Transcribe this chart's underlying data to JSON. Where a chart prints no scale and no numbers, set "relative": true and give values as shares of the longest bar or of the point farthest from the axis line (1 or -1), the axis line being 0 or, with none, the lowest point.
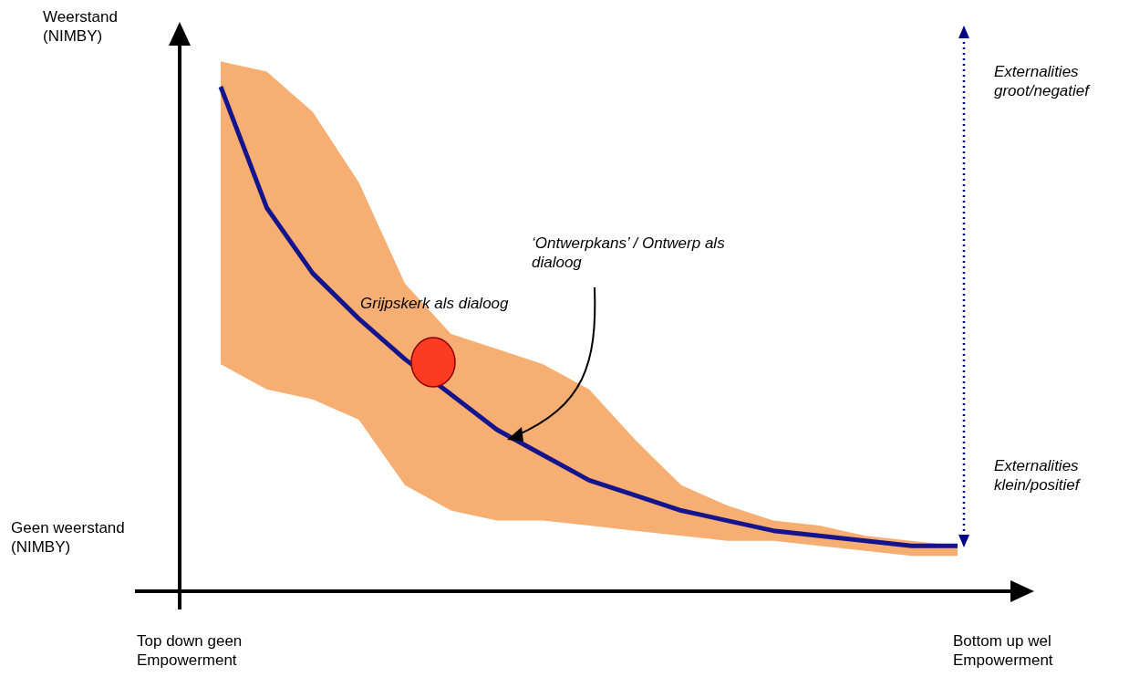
{
  "chart_data": {
    "type": "line",
    "relative": true,
    "categories": [
      null,
      null,
      null,
      null,
      null,
      null,
      null,
      null,
      null,
      null,
      null,
      null,
      null,
      null,
      null,
      null,
      null
    ],
    "series": [
      {
        "color": "#14148c",
        "values": [
          1.0,
          0.76,
          0.63,
          0.54,
          0.46,
          0.39,
          0.32,
          0.27,
          0.22,
          0.19,
          0.16,
          0.14,
          0.12,
          0.11,
          0.1,
          0.09,
          0.09
        ],
        "lower": [
          0.45,
          0.4,
          0.38,
          0.34,
          0.21,
          0.16,
          0.14,
          0.14,
          0.13,
          0.12,
          0.11,
          0.1,
          0.1,
          0.09,
          0.08,
          0.07,
          0.07
        ],
        "upper": [
          1.05,
          1.03,
          0.95,
          0.81,
          0.61,
          0.51,
          0.48,
          0.45,
          0.4,
          0.3,
          0.21,
          0.17,
          0.14,
          0.13,
          0.11,
          0.1,
          0.09
        ]
      }
    ],
    "annotations": [
      "Weerstand (NIMBY)",
      "Geen weerstand (NIMBY)",
      "Top down geen Empowerment",
      "Bottom up wel Empowerment",
      "Externalities groot/negatief",
      "Externalities klein/positief",
      "Grijpskerk als dialoog",
      "‘Ontwerpkans’ / Ontwerp als dialoog"
    ]
  }
}
